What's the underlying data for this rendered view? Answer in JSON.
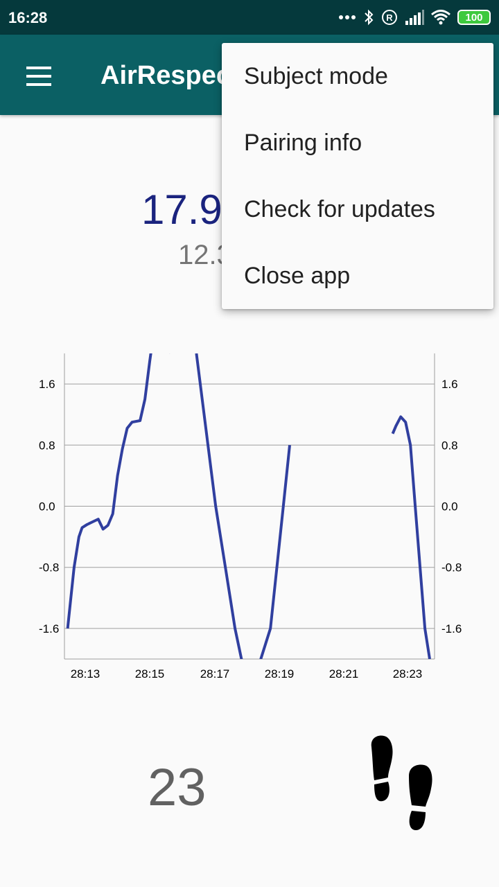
{
  "status_bar": {
    "time": "16:28",
    "battery": "100",
    "icons": [
      "more-dots-icon",
      "bluetooth-icon",
      "roaming-r-icon",
      "signal-icon",
      "wifi-icon",
      "battery-icon"
    ]
  },
  "app_bar": {
    "title": "AirRespeck",
    "menu_icon": "hamburger-menu-icon"
  },
  "readings": {
    "main": "17.9",
    "sub": "12.3"
  },
  "overflow_menu": {
    "items": [
      {
        "label": "Subject mode"
      },
      {
        "label": "Pairing info"
      },
      {
        "label": "Check for updates"
      },
      {
        "label": "Close app"
      }
    ]
  },
  "chart_data": {
    "type": "line",
    "title": "",
    "xlabel": "",
    "ylabel": "",
    "x_ticks": [
      "28:13",
      "28:15",
      "28:17",
      "28:19",
      "28:21",
      "28:23"
    ],
    "y_ticks": [
      "1.6",
      "0.8",
      "0.0",
      "-0.8",
      "-1.6"
    ],
    "ylim": [
      -2.0,
      2.0
    ],
    "grid": true,
    "line_color": "#303f9f",
    "series": [
      {
        "segments": [
          {
            "x": [
              0.0,
              0.2,
              0.35,
              0.45,
              0.6,
              0.8,
              0.95,
              1.1,
              1.25,
              1.4,
              1.55,
              1.7,
              1.85,
              2.0,
              2.25,
              2.4,
              2.55,
              2.75,
              2.95,
              3.1,
              3.2
            ],
            "y": [
              -1.6,
              -0.8,
              -0.4,
              -0.28,
              -0.24,
              -0.2,
              -0.17,
              -0.3,
              -0.25,
              -0.1,
              0.4,
              0.75,
              1.02,
              1.1,
              1.12,
              1.4,
              1.9,
              2.5,
              2.8,
              2.5,
              2.0
            ]
          },
          {
            "x": [
              4.0,
              4.3,
              4.6,
              4.9,
              5.2,
              5.4,
              5.55,
              5.75,
              6.0,
              6.3,
              6.5,
              6.7,
              6.9
            ],
            "y": [
              2.0,
              1.0,
              0.0,
              -0.8,
              -1.6,
              -2.0,
              -2.3,
              -2.3,
              -2.0,
              -1.6,
              -0.8,
              0.0,
              0.8
            ]
          },
          {
            "x": [
              10.1,
              10.2,
              10.35,
              10.5,
              10.65,
              10.8,
              10.95,
              11.1,
              11.25
            ],
            "y": [
              0.95,
              1.05,
              1.17,
              1.1,
              0.8,
              0.0,
              -0.8,
              -1.6,
              -2.0
            ]
          }
        ]
      }
    ]
  }
}
